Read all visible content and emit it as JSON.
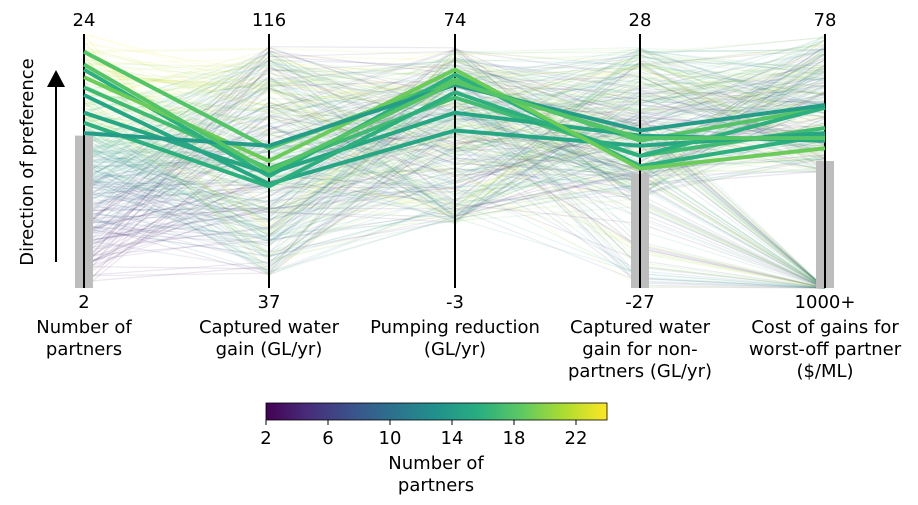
{
  "chart_data": {
    "type": "parallel_coordinates",
    "preference_label": "Direction of preference",
    "axes": [
      {
        "key": "partners",
        "label_lines": [
          "Number of",
          "partners"
        ],
        "top": "24",
        "bottom": "2",
        "min": 2,
        "max": 24
      },
      {
        "key": "captured",
        "label_lines": [
          "Captured water",
          "gain (GL/yr)"
        ],
        "top": "116",
        "bottom": "37",
        "min": 37,
        "max": 116
      },
      {
        "key": "pumping",
        "label_lines": [
          "Pumping reduction",
          "(GL/yr)"
        ],
        "top": "74",
        "bottom": "-3",
        "min": -3,
        "max": 74
      },
      {
        "key": "nonpartner",
        "label_lines": [
          "Captured water",
          "gain for non-",
          "partners (GL/yr)"
        ],
        "top": "28",
        "bottom": "-27",
        "min": -27,
        "max": 28
      },
      {
        "key": "cost",
        "label_lines": [
          "Cost of gains for",
          "worst-off partner",
          "($/ML)"
        ],
        "top": "78",
        "bottom": "1000+",
        "min": 1000,
        "max": 78
      }
    ],
    "constraint_bars": [
      {
        "axis": 0,
        "range_fraction": [
          0.0,
          0.6
        ]
      },
      {
        "axis": 3,
        "range_fraction": [
          0.0,
          0.45
        ]
      },
      {
        "axis": 4,
        "range_fraction": [
          0.0,
          0.5
        ]
      }
    ],
    "highlighted_solutions": [
      {
        "color_value": 18,
        "values": [
          0.93,
          0.55,
          0.82,
          0.58,
          0.71
        ]
      },
      {
        "color_value": 17,
        "values": [
          0.79,
          0.47,
          0.75,
          0.52,
          0.63
        ]
      },
      {
        "color_value": 16,
        "values": [
          0.86,
          0.44,
          0.84,
          0.48,
          0.6
        ]
      },
      {
        "color_value": 15,
        "values": [
          0.76,
          0.41,
          0.62,
          0.56,
          0.61
        ]
      },
      {
        "color_value": 15,
        "values": [
          0.69,
          0.45,
          0.69,
          0.6,
          0.58
        ]
      },
      {
        "color_value": 16,
        "values": [
          0.65,
          0.4,
          0.77,
          0.52,
          0.71
        ]
      },
      {
        "color_value": 19,
        "values": [
          0.83,
          0.5,
          0.86,
          0.47,
          0.55
        ]
      },
      {
        "color_value": 14,
        "values": [
          0.61,
          0.56,
          0.8,
          0.62,
          0.72
        ]
      },
      {
        "color_value": 18,
        "values": [
          0.88,
          0.46,
          0.81,
          0.59,
          0.59
        ]
      }
    ],
    "colorbar": {
      "title_lines": [
        "Number of",
        "partners"
      ],
      "ticks": [
        "2",
        "6",
        "10",
        "14",
        "18",
        "22"
      ],
      "min": 2,
      "max": 24
    }
  }
}
